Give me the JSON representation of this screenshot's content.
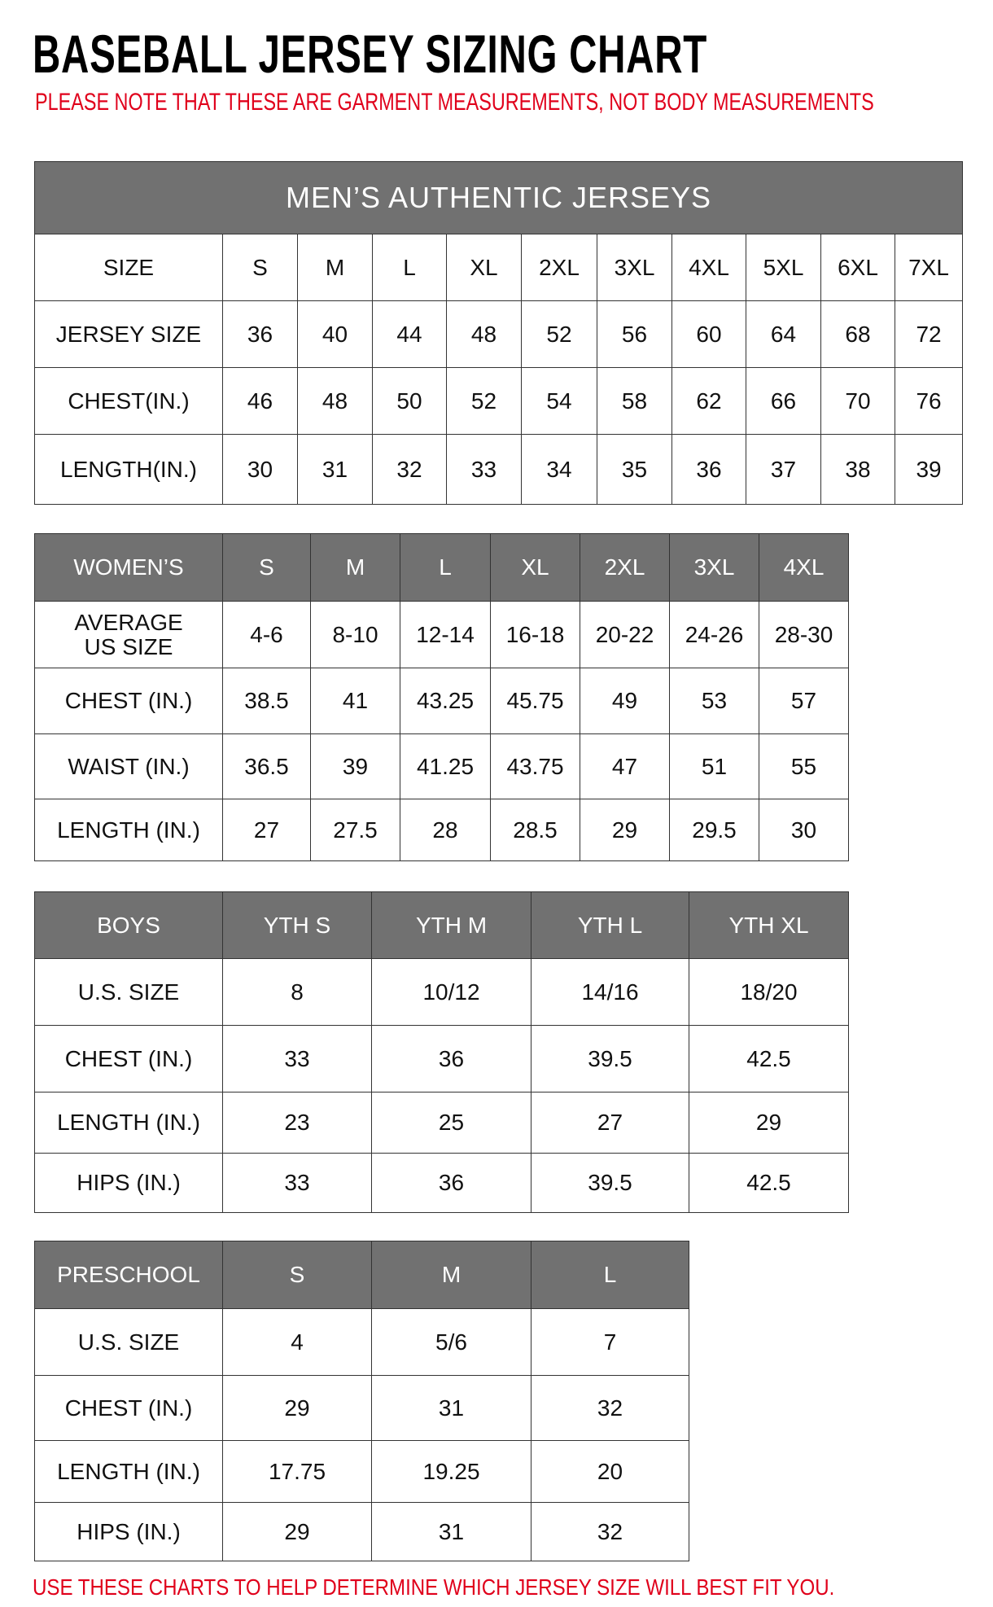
{
  "title": "BASEBALL JERSEY SIZING CHART",
  "note": "PLEASE NOTE THAT THESE ARE GARMENT MEASUREMENTS, NOT BODY MEASUREMENTS",
  "footer": "USE THESE CHARTS TO HELP DETERMINE WHICH JERSEY SIZE WILL BEST FIT YOU.",
  "colors": {
    "header_bg": "#717171",
    "accent_red": "#e0001b"
  },
  "tables": [
    {
      "banner": "MEN’S AUTHENTIC JERSEYS",
      "header": [
        "SIZE",
        "S",
        "M",
        "L",
        "XL",
        "2XL",
        "3XL",
        "4XL",
        "5XL",
        "6XL",
        "7XL"
      ],
      "header_style": "plain",
      "rows": [
        [
          "JERSEY SIZE",
          "36",
          "40",
          "44",
          "48",
          "52",
          "56",
          "60",
          "64",
          "68",
          "72"
        ],
        [
          "CHEST(IN.)",
          "46",
          "48",
          "50",
          "52",
          "54",
          "58",
          "62",
          "66",
          "70",
          "76"
        ],
        [
          "LENGTH(IN.)",
          "30",
          "31",
          "32",
          "33",
          "34",
          "35",
          "36",
          "37",
          "38",
          "39"
        ]
      ]
    },
    {
      "header": [
        "WOMEN’S",
        "S",
        "M",
        "L",
        "XL",
        "2XL",
        "3XL",
        "4XL"
      ],
      "header_style": "gray",
      "rows": [
        [
          "AVERAGE\nUS SIZE",
          "4-6",
          "8-10",
          "12-14",
          "16-18",
          "20-22",
          "24-26",
          "28-30"
        ],
        [
          "CHEST (IN.)",
          "38.5",
          "41",
          "43.25",
          "45.75",
          "49",
          "53",
          "57"
        ],
        [
          "WAIST (IN.)",
          "36.5",
          "39",
          "41.25",
          "43.75",
          "47",
          "51",
          "55"
        ],
        [
          "LENGTH (IN.)",
          "27",
          "27.5",
          "28",
          "28.5",
          "29",
          "29.5",
          "30"
        ]
      ]
    },
    {
      "header": [
        "BOYS",
        "YTH S",
        "YTH M",
        "YTH L",
        "YTH XL"
      ],
      "header_style": "gray",
      "rows": [
        [
          "U.S. SIZE",
          "8",
          "10/12",
          "14/16",
          "18/20"
        ],
        [
          "CHEST (IN.)",
          "33",
          "36",
          "39.5",
          "42.5"
        ],
        [
          "LENGTH (IN.)",
          "23",
          "25",
          "27",
          "29"
        ],
        [
          "HIPS (IN.)",
          "33",
          "36",
          "39.5",
          "42.5"
        ]
      ]
    },
    {
      "header": [
        "PRESCHOOL",
        "S",
        "M",
        "L"
      ],
      "header_style": "gray",
      "rows": [
        [
          "U.S. SIZE",
          "4",
          "5/6",
          "7"
        ],
        [
          "CHEST (IN.)",
          "29",
          "31",
          "32"
        ],
        [
          "LENGTH (IN.)",
          "17.75",
          "19.25",
          "20"
        ],
        [
          "HIPS (IN.)",
          "29",
          "31",
          "32"
        ]
      ]
    }
  ]
}
